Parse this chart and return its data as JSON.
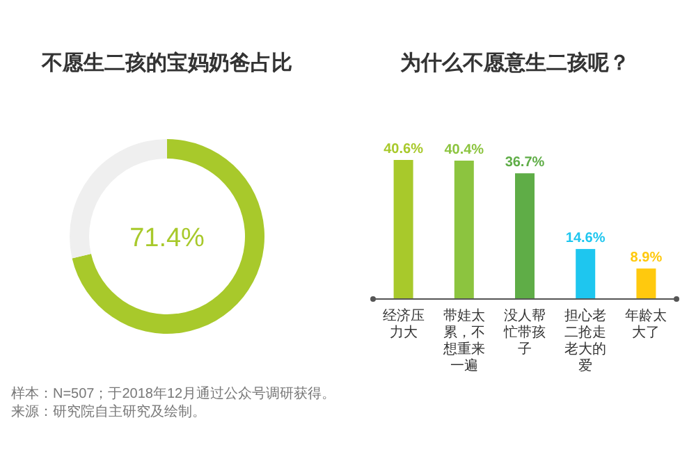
{
  "chart_data": [
    {
      "type": "donut",
      "title": "不愿生二孩的宝妈奶爸占比",
      "categories": [
        null,
        null
      ],
      "values": [
        71.4,
        28.6
      ],
      "colors": [
        "#a8c92b",
        "#efefef"
      ],
      "value_labels": [
        "71.4%",
        null
      ],
      "annotations": [
        "样本：N=507；于2018年12月通过公众号调研获得。",
        "来源：研究院自主研究及绘制。"
      ]
    },
    {
      "type": "bar",
      "title": "为什么不愿意生二孩呢？",
      "value_labels": [
        "40.6%",
        "40.4%",
        "36.7%",
        "14.6%",
        "8.9%"
      ],
      "categories": [
        "经济压力大",
        "带娃太累，不想重来一遍",
        "没人帮忙带孩子",
        "担心老二抢走老大的爱",
        "年龄太大了"
      ],
      "values": [
        40.6,
        40.4,
        36.7,
        14.6,
        8.9
      ],
      "colors": [
        "#a8c92b",
        "#8cc43f",
        "#5fad47",
        "#1ec6ef",
        "#ffc90e"
      ]
    }
  ]
}
